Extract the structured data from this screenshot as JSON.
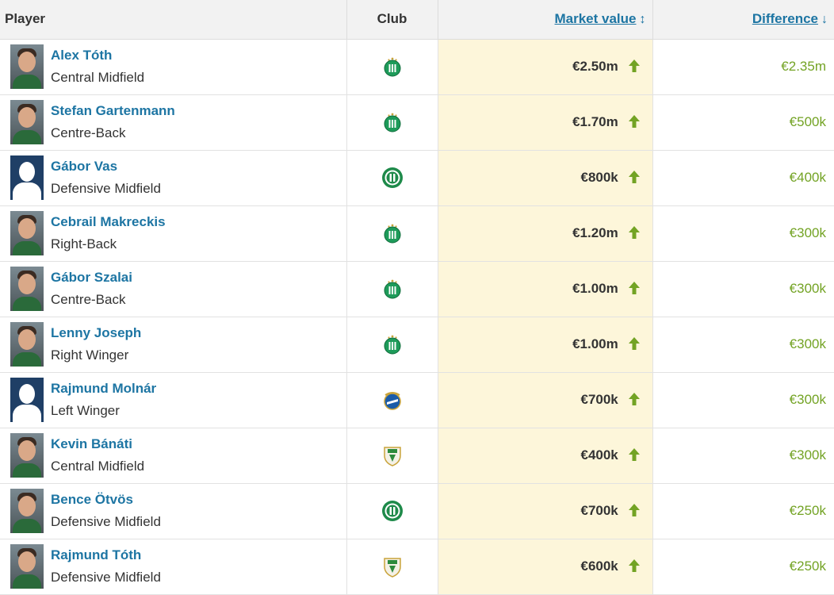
{
  "header": {
    "player": "Player",
    "club": "Club",
    "market_value": "Market value",
    "difference": "Difference",
    "mv_sort_icon": "sort-both-icon",
    "diff_sort_icon": "sort-down-icon"
  },
  "colors": {
    "link": "#1d75a3",
    "positive": "#73a324",
    "value_bg": "#fdf6da",
    "header_bg": "#f2f2f2",
    "ferencvaros_green": "#1e9b5a",
    "paks_green": "#2c8a3c",
    "mtk_blue": "#1a5ba8"
  },
  "rows": [
    {
      "name": "Alex Tóth",
      "position": "Central Midfield",
      "value": "€2.50m",
      "difference": "€2.35m",
      "club_icon": "ferencvaros-crest-icon",
      "photo": "face"
    },
    {
      "name": "Stefan Gartenmann",
      "position": "Centre-Back",
      "value": "€1.70m",
      "difference": "€500k",
      "club_icon": "ferencvaros-crest-icon",
      "photo": "face"
    },
    {
      "name": "Gábor Vas",
      "position": "Defensive Midfield",
      "value": "€800k",
      "difference": "€400k",
      "club_icon": "round-green-crest-icon",
      "photo": "silhouette"
    },
    {
      "name": "Cebrail Makreckis",
      "position": "Right-Back",
      "value": "€1.20m",
      "difference": "€300k",
      "club_icon": "ferencvaros-crest-icon",
      "photo": "face"
    },
    {
      "name": "Gábor Szalai",
      "position": "Centre-Back",
      "value": "€1.00m",
      "difference": "€300k",
      "club_icon": "ferencvaros-crest-icon",
      "photo": "face"
    },
    {
      "name": "Lenny Joseph",
      "position": "Right Winger",
      "value": "€1.00m",
      "difference": "€300k",
      "club_icon": "ferencvaros-crest-icon",
      "photo": "face"
    },
    {
      "name": "Rajmund Molnár",
      "position": "Left Winger",
      "value": "€700k",
      "difference": "€300k",
      "club_icon": "mtk-crest-icon",
      "photo": "silhouette"
    },
    {
      "name": "Kevin Bánáti",
      "position": "Central Midfield",
      "value": "€400k",
      "difference": "€300k",
      "club_icon": "paks-crest-icon",
      "photo": "face"
    },
    {
      "name": "Bence Ötvös",
      "position": "Defensive Midfield",
      "value": "€700k",
      "difference": "€250k",
      "club_icon": "round-green-crest-icon",
      "photo": "face"
    },
    {
      "name": "Rajmund Tóth",
      "position": "Defensive Midfield",
      "value": "€600k",
      "difference": "€250k",
      "club_icon": "paks-crest-icon",
      "photo": "face"
    }
  ]
}
